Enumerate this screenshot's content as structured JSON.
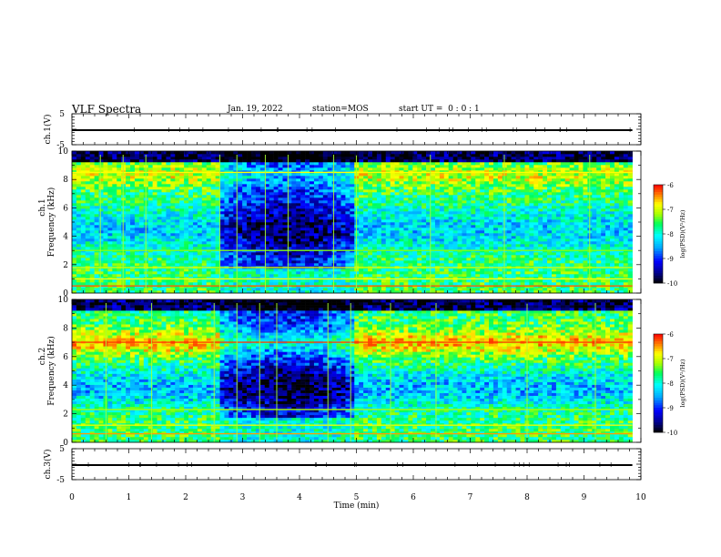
{
  "header": {
    "title": "VLF Spectra",
    "date": "Jan. 19, 2022",
    "station": "station=MOS",
    "start": "start UT =  0 : 0 : 1"
  },
  "chart_data": [
    {
      "type": "line",
      "panel": "ch1-waveform",
      "ylabel": "ch.1(V)",
      "ylim": [
        -5,
        5
      ],
      "yticks": [
        "5",
        "-5"
      ],
      "xlim": [
        0,
        10
      ],
      "series": [
        {
          "x": [
            0,
            9.85
          ],
          "values": [
            0,
            0
          ]
        }
      ],
      "color": "#000000"
    },
    {
      "type": "heatmap",
      "panel": "ch1-spectrogram",
      "ylabel_top": "ch.1",
      "ylabel": "Frequency (kHz)",
      "ylim": [
        0,
        10
      ],
      "yticks": [
        "0",
        "2",
        "4",
        "6",
        "8",
        "10"
      ],
      "xlim": [
        0,
        10
      ],
      "data_extent_min": 9.85,
      "colorbar": {
        "label": "log(PSD)(V²/Hz)",
        "ticks": [
          "-6",
          "-7",
          "-8",
          "-9",
          "-10"
        ],
        "range": [
          -10,
          -6
        ]
      },
      "bands": [
        {
          "freq": 0.5,
          "level": -6.3
        },
        {
          "freq": 1.0,
          "level": -6.8
        },
        {
          "freq": 1.8,
          "level": -7.0
        },
        {
          "freq": 3.0,
          "level": -7.3
        },
        {
          "freq": 8.5,
          "level": -6.8
        }
      ],
      "quiet_interval_min": [
        2.6,
        5.0
      ],
      "spike_times_min": [
        0.5,
        0.9,
        1.3,
        2.6,
        2.9,
        3.4,
        3.8,
        4.6,
        5.0,
        6.3,
        7.6,
        9.1
      ]
    },
    {
      "type": "heatmap",
      "panel": "ch2-spectrogram",
      "ylabel_top": "ch.2",
      "ylabel": "Frequency (kHz)",
      "ylim": [
        0,
        10
      ],
      "yticks": [
        "0",
        "2",
        "4",
        "6",
        "8",
        "10"
      ],
      "xlim": [
        0,
        10
      ],
      "data_extent_min": 9.85,
      "colorbar": {
        "label": "log(PSD)(V²/Hz)",
        "ticks": [
          "-6",
          "-7",
          "-8",
          "-9",
          "-10"
        ],
        "range": [
          -10,
          -6
        ]
      },
      "bands": [
        {
          "freq": 0.6,
          "level": -6.5
        },
        {
          "freq": 1.2,
          "level": -6.9
        },
        {
          "freq": 2.3,
          "level": -7.2
        },
        {
          "freq": 7.0,
          "level": -6.2
        }
      ],
      "quiet_interval_min": [
        2.6,
        5.0
      ],
      "spike_times_min": [
        0.6,
        1.4,
        2.5,
        2.9,
        3.3,
        3.6,
        4.5,
        4.9,
        5.6,
        6.4,
        8.0,
        9.2
      ]
    },
    {
      "type": "line",
      "panel": "ch3-waveform",
      "ylabel": "ch.3(V)",
      "ylim": [
        -5,
        5
      ],
      "yticks": [
        "5",
        "-5"
      ],
      "xlim": [
        0,
        10
      ],
      "series": [
        {
          "x": [
            0,
            9.85
          ],
          "values": [
            0,
            0
          ]
        }
      ],
      "color": "#000000"
    }
  ],
  "x_axis": {
    "label": "Time (min)",
    "ticks": [
      "0",
      "1",
      "2",
      "3",
      "4",
      "5",
      "6",
      "7",
      "8",
      "9",
      "10"
    ]
  }
}
